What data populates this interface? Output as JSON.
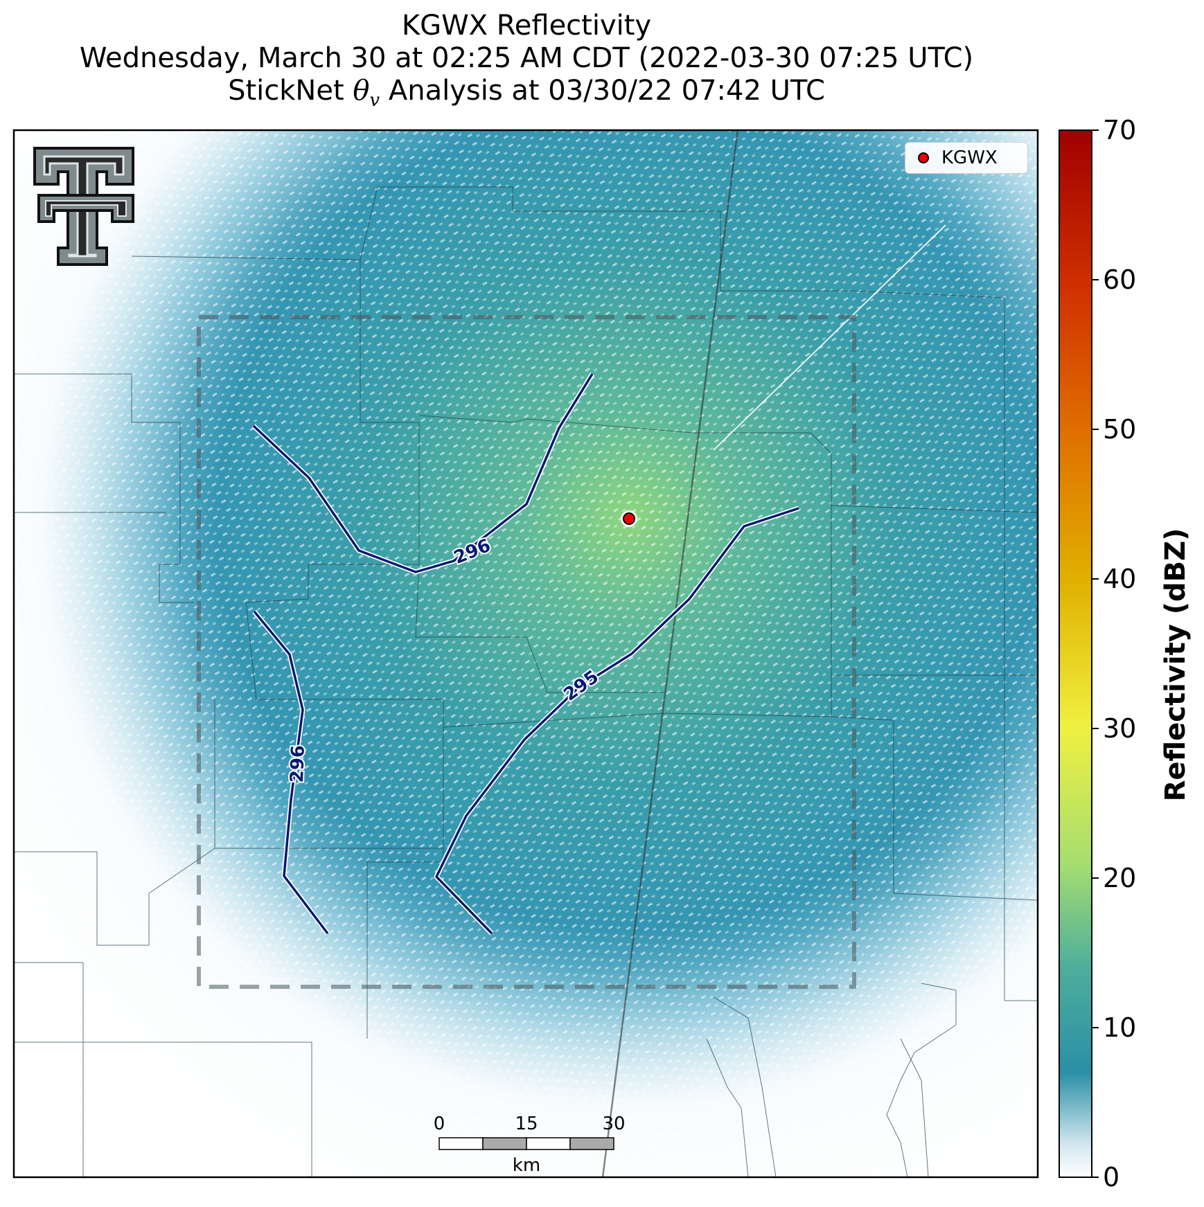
{
  "title": {
    "line1": "KGWX Reflectivity",
    "line2": "Wednesday, March 30 at 02:25 AM CDT (2022-03-30 07:25 UTC)",
    "line3_prefix": "StickNet ",
    "line3_symbol": "θ",
    "line3_sub": "v",
    "line3_suffix": " Analysis at 03/30/22 07:42 UTC"
  },
  "legend": {
    "label": "KGWX",
    "marker_color": "#ee0000"
  },
  "colorbar": {
    "label": "Reflectivity (dBZ)",
    "ticks": [
      "0",
      "10",
      "20",
      "30",
      "40",
      "50",
      "60",
      "70"
    ],
    "min": 0,
    "max": 70,
    "colors": [
      "#ffffff",
      "#2a8fa6",
      "#55b2a0",
      "#a6de70",
      "#f0f040",
      "#e0b000",
      "#e06000",
      "#b00000"
    ]
  },
  "contours": [
    {
      "label": "296",
      "level": 296
    },
    {
      "label": "296",
      "level": 296
    },
    {
      "label": "295",
      "level": 295
    }
  ],
  "scalebar": {
    "labels": [
      "0",
      "15",
      "30"
    ],
    "unit": "km"
  },
  "radar_site": "KGWX",
  "logo": {
    "name": "Texas Tech double-T"
  }
}
